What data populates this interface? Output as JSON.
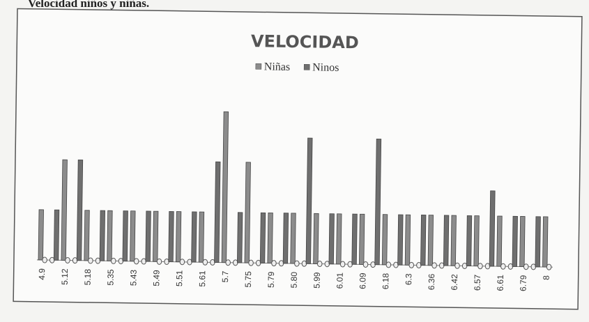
{
  "caption": "Velocidad niños y niñas.",
  "chart_data": {
    "type": "bar",
    "title": "VELOCIDAD",
    "categories": [
      "4.9",
      null,
      "5.12",
      null,
      "5.18",
      null,
      "5.35",
      null,
      "5.43",
      null,
      "5.49",
      null,
      "5.51",
      null,
      "5.61",
      null,
      "5.7",
      null,
      "5.75",
      null,
      "5.79",
      null,
      "5.80",
      null,
      "5.99",
      null,
      "6.01",
      null,
      "6.09",
      null,
      "6.18",
      null,
      "6.3",
      null,
      "6.36",
      null,
      "6.42",
      null,
      "6.57",
      null,
      "6.61",
      null,
      "6.79",
      null,
      "8"
    ],
    "series": [
      {
        "name": "Niñas",
        "color": "#8c8c8c",
        "values": [
          1,
          0,
          2,
          0,
          1,
          0,
          1,
          0,
          1,
          0,
          1,
          0,
          1,
          0,
          1,
          0,
          3,
          0,
          2,
          0,
          1,
          0,
          1,
          0,
          1,
          0,
          1,
          0,
          1,
          0,
          1,
          0,
          1,
          0,
          1,
          0,
          1,
          0,
          1,
          0,
          1,
          0,
          1,
          0,
          1
        ]
      },
      {
        "name": "Ninos",
        "color": "#6f6f6f",
        "values": [
          0,
          1,
          0,
          2,
          0,
          1,
          0,
          1,
          0,
          1,
          0,
          1,
          0,
          1,
          0,
          2,
          0,
          1,
          0,
          1,
          0,
          1,
          0,
          2.5,
          0,
          1,
          0,
          1,
          0,
          2.5,
          0,
          1,
          0,
          1,
          0,
          1,
          0,
          1,
          0,
          1.5,
          0,
          1,
          0,
          1,
          0
        ]
      }
    ],
    "ylim": [
      0,
      3.3
    ],
    "legend": "top"
  }
}
